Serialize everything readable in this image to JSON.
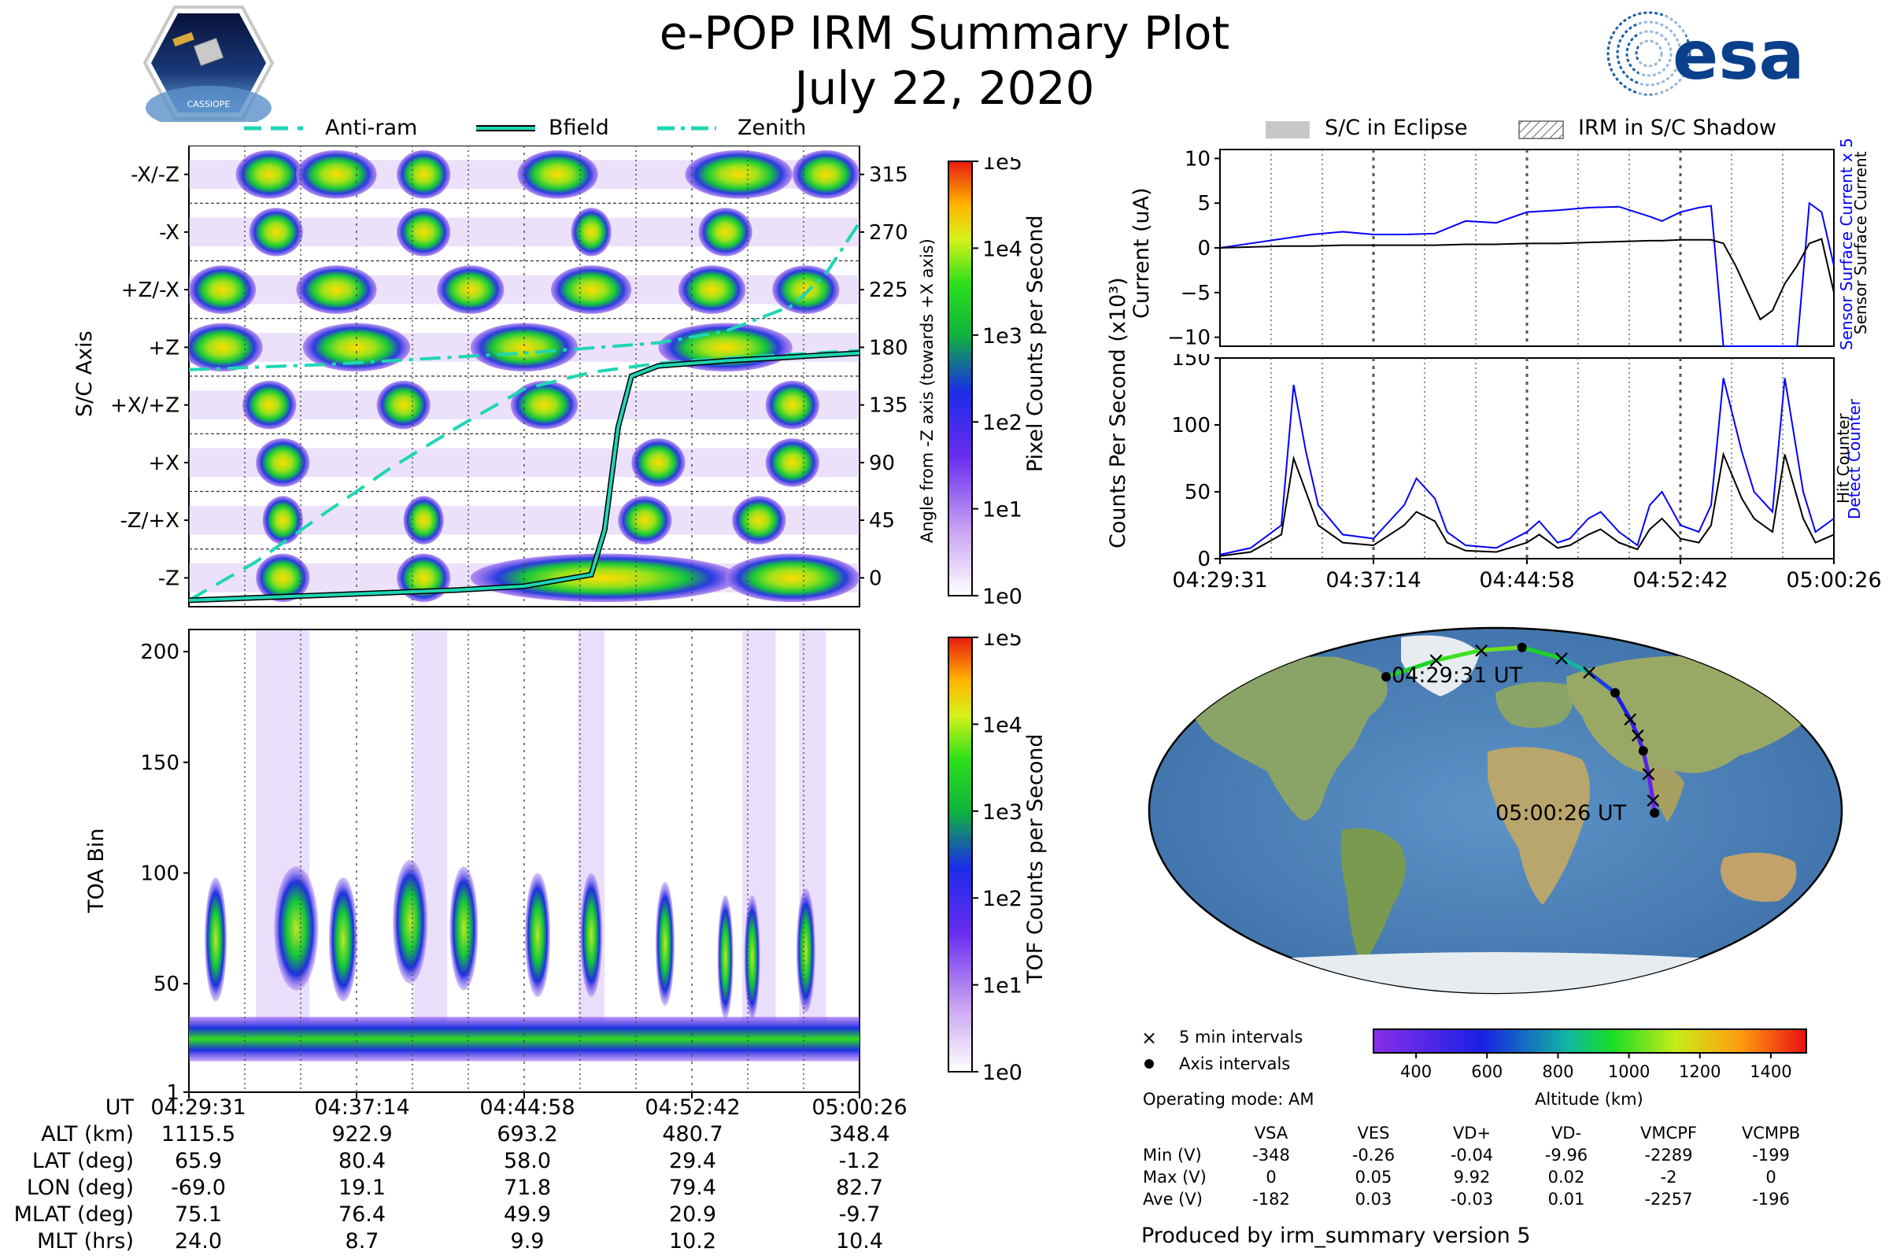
{
  "header": {
    "title": "e-POP IRM Summary Plot",
    "date": "July 22, 2020",
    "left_logo_text": "CASSIOPE",
    "right_logo_text": "esa"
  },
  "line_legend": [
    "Anti-ram",
    "Bfield",
    "Zenith"
  ],
  "shade_legend": [
    "S/C in Eclipse",
    "IRM in S/C Shadow"
  ],
  "time_ticks": [
    "04:29:31",
    "04:37:14",
    "04:44:58",
    "04:52:42",
    "05:00:26"
  ],
  "colors": {
    "accent_cyan": "#1ed6b4",
    "line_black": "#000000",
    "line_blue": "#0000ff"
  },
  "chart_data": [
    {
      "type": "heatmap",
      "id": "pixel",
      "ylabel": "S/C Axis",
      "y2label": "Angle from -Z axis (towards +X axis)",
      "y_categories": [
        "-X/-Z",
        "-X",
        "+Z/-X",
        "+Z",
        "+X/+Z",
        "+X",
        "-Z/+X",
        "-Z"
      ],
      "y2_ticks": [
        "315",
        "270",
        "225",
        "180",
        "135",
        "90",
        "45",
        "0"
      ],
      "colorbar": {
        "label": "Pixel Counts per Second",
        "ticks": [
          "1e5",
          "1e4",
          "1e3",
          "1e2",
          "1e1",
          "1e0"
        ]
      },
      "lines": [
        {
          "name": "Anti-ram",
          "x": [
            0,
            0.1,
            0.2,
            0.3,
            0.4,
            0.5,
            0.6,
            0.7,
            0.8,
            0.9,
            1.0
          ],
          "y": [
            -15,
            15,
            52,
            88,
            120,
            150,
            163,
            170,
            174,
            177,
            180
          ]
        },
        {
          "name": "Bfield",
          "x": [
            0,
            0.1,
            0.2,
            0.3,
            0.4,
            0.5,
            0.6,
            0.62,
            0.64,
            0.66,
            0.7,
            0.8,
            0.9,
            1.0
          ],
          "y": [
            -15,
            -13,
            -11,
            -9,
            -7,
            -4,
            5,
            40,
            120,
            160,
            168,
            172,
            175,
            178
          ]
        },
        {
          "name": "Zenith",
          "x": [
            0,
            0.1,
            0.2,
            0.3,
            0.4,
            0.5,
            0.6,
            0.7,
            0.8,
            0.9,
            0.95,
            1.0
          ],
          "y": [
            165,
            167,
            169,
            172,
            175,
            178,
            182,
            186,
            195,
            215,
            240,
            280
          ]
        }
      ]
    },
    {
      "type": "heatmap",
      "id": "tof",
      "ylabel": "TOA Bin",
      "y_ticks": [
        "200",
        "150",
        "100",
        "50",
        "1"
      ],
      "colorbar": {
        "label": "TOF Counts per Second",
        "ticks": [
          "1e5",
          "1e4",
          "1e3",
          "1e2",
          "1e1",
          "1e0"
        ]
      }
    },
    {
      "type": "line",
      "id": "current",
      "ylabel": "Current (uA)",
      "y_ticks": [
        "10",
        "5",
        "0",
        "−5",
        "−10"
      ],
      "ylim": [
        -11,
        11
      ],
      "right_labels": [
        "Sensor Surface Current x 5",
        "Sensor Surface Current"
      ],
      "x": [
        0,
        0.05,
        0.1,
        0.15,
        0.2,
        0.25,
        0.3,
        0.35,
        0.4,
        0.45,
        0.5,
        0.55,
        0.6,
        0.65,
        0.7,
        0.72,
        0.75,
        0.78,
        0.8,
        0.82,
        0.84,
        0.86,
        0.88,
        0.9,
        0.92,
        0.94,
        0.96,
        0.98,
        1.0
      ],
      "series": [
        {
          "name": "Sensor Surface Current x 5",
          "y": [
            0,
            0.5,
            1,
            1.5,
            1.8,
            1.5,
            1.5,
            1.6,
            3,
            2.8,
            4,
            4.2,
            4.5,
            4.6,
            3.5,
            3,
            4,
            4.5,
            4.7,
            -11,
            -11,
            -11,
            -11,
            -11,
            -11,
            -11,
            5,
            4,
            -2
          ]
        },
        {
          "name": "Sensor Surface Current",
          "y": [
            0,
            0.1,
            0.2,
            0.2,
            0.3,
            0.3,
            0.3,
            0.3,
            0.4,
            0.4,
            0.5,
            0.5,
            0.6,
            0.7,
            0.8,
            0.8,
            0.9,
            0.9,
            0.9,
            0.5,
            -2,
            -5,
            -8,
            -7,
            -4,
            -2,
            0.5,
            1,
            -5
          ]
        }
      ]
    },
    {
      "type": "line",
      "id": "counts",
      "ylabel": "Counts Per Second (x10³)",
      "y_ticks": [
        "150",
        "100",
        "50",
        "0"
      ],
      "ylim": [
        0,
        150
      ],
      "right_labels": [
        "Detect Counter",
        "Hit Counter"
      ],
      "x": [
        0,
        0.05,
        0.1,
        0.12,
        0.14,
        0.16,
        0.2,
        0.25,
        0.3,
        0.32,
        0.35,
        0.37,
        0.4,
        0.45,
        0.5,
        0.52,
        0.55,
        0.57,
        0.6,
        0.62,
        0.65,
        0.68,
        0.7,
        0.72,
        0.75,
        0.78,
        0.8,
        0.82,
        0.85,
        0.87,
        0.9,
        0.92,
        0.95,
        0.97,
        1.0
      ],
      "series": [
        {
          "name": "Detect Counter",
          "y": [
            3,
            8,
            25,
            130,
            80,
            40,
            18,
            15,
            40,
            60,
            45,
            20,
            10,
            8,
            20,
            28,
            12,
            15,
            30,
            35,
            20,
            10,
            40,
            50,
            25,
            20,
            40,
            135,
            80,
            50,
            35,
            135,
            50,
            20,
            30
          ]
        },
        {
          "name": "Hit Counter",
          "y": [
            2,
            5,
            18,
            75,
            50,
            25,
            12,
            10,
            25,
            35,
            28,
            12,
            6,
            5,
            12,
            18,
            8,
            10,
            18,
            22,
            12,
            7,
            22,
            30,
            15,
            12,
            25,
            78,
            45,
            30,
            20,
            78,
            30,
            12,
            18
          ]
        }
      ]
    },
    {
      "type": "scatter",
      "id": "map",
      "start_label": "04:29:31 UT",
      "end_label": "05:00:26 UT",
      "points": [
        {
          "lon": -69.0,
          "lat": 65.9
        },
        {
          "lon": -40,
          "lat": 74
        },
        {
          "lon": -10,
          "lat": 79
        },
        {
          "lon": 19.1,
          "lat": 80.4
        },
        {
          "lon": 45,
          "lat": 75
        },
        {
          "lon": 60,
          "lat": 68
        },
        {
          "lon": 71.8,
          "lat": 58.0
        },
        {
          "lon": 76,
          "lat": 45
        },
        {
          "lon": 78,
          "lat": 37
        },
        {
          "lon": 79.4,
          "lat": 29.4
        },
        {
          "lon": 80.5,
          "lat": 18
        },
        {
          "lon": 82,
          "lat": 5
        },
        {
          "lon": 82.7,
          "lat": -1.2
        }
      ],
      "colorbar": {
        "label": "Altitude (km)",
        "ticks": [
          "400",
          "600",
          "800",
          "1000",
          "1200",
          "1400"
        ]
      },
      "legend": [
        "5 min intervals",
        "Axis intervals"
      ]
    }
  ],
  "orbit_table": {
    "row_labels": [
      "UT",
      "ALT (km)",
      "LAT (deg)",
      "LON (deg)",
      "MLAT (deg)",
      "MLT (hrs)"
    ],
    "columns": [
      [
        "04:29:31",
        "1115.5",
        "65.9",
        "-69.0",
        "75.1",
        "24.0"
      ],
      [
        "04:37:14",
        "922.9",
        "80.4",
        "19.1",
        "76.4",
        "8.7"
      ],
      [
        "04:44:58",
        "693.2",
        "58.0",
        "71.8",
        "49.9",
        "9.9"
      ],
      [
        "04:52:42",
        "480.7",
        "29.4",
        "79.4",
        "20.9",
        "10.2"
      ],
      [
        "05:00:26",
        "348.4",
        "-1.2",
        "82.7",
        "-9.7",
        "10.4"
      ]
    ]
  },
  "operating_mode": "Operating mode: AM",
  "voltage_table": {
    "headers": [
      "VSA",
      "VES",
      "VD+",
      "VD-",
      "VMCPF",
      "VCMPB"
    ],
    "rows": [
      {
        "label": "Min (V)",
        "values": [
          "-348",
          "-0.26",
          "-0.04",
          "-9.96",
          "-2289",
          "-199"
        ]
      },
      {
        "label": "Max (V)",
        "values": [
          "0",
          "0.05",
          "9.92",
          "0.02",
          "-2",
          "0"
        ]
      },
      {
        "label": "Ave (V)",
        "values": [
          "-182",
          "0.03",
          "-0.03",
          "0.01",
          "-2257",
          "-196"
        ]
      }
    ]
  },
  "footer": "Produced by irm_summary version 5"
}
